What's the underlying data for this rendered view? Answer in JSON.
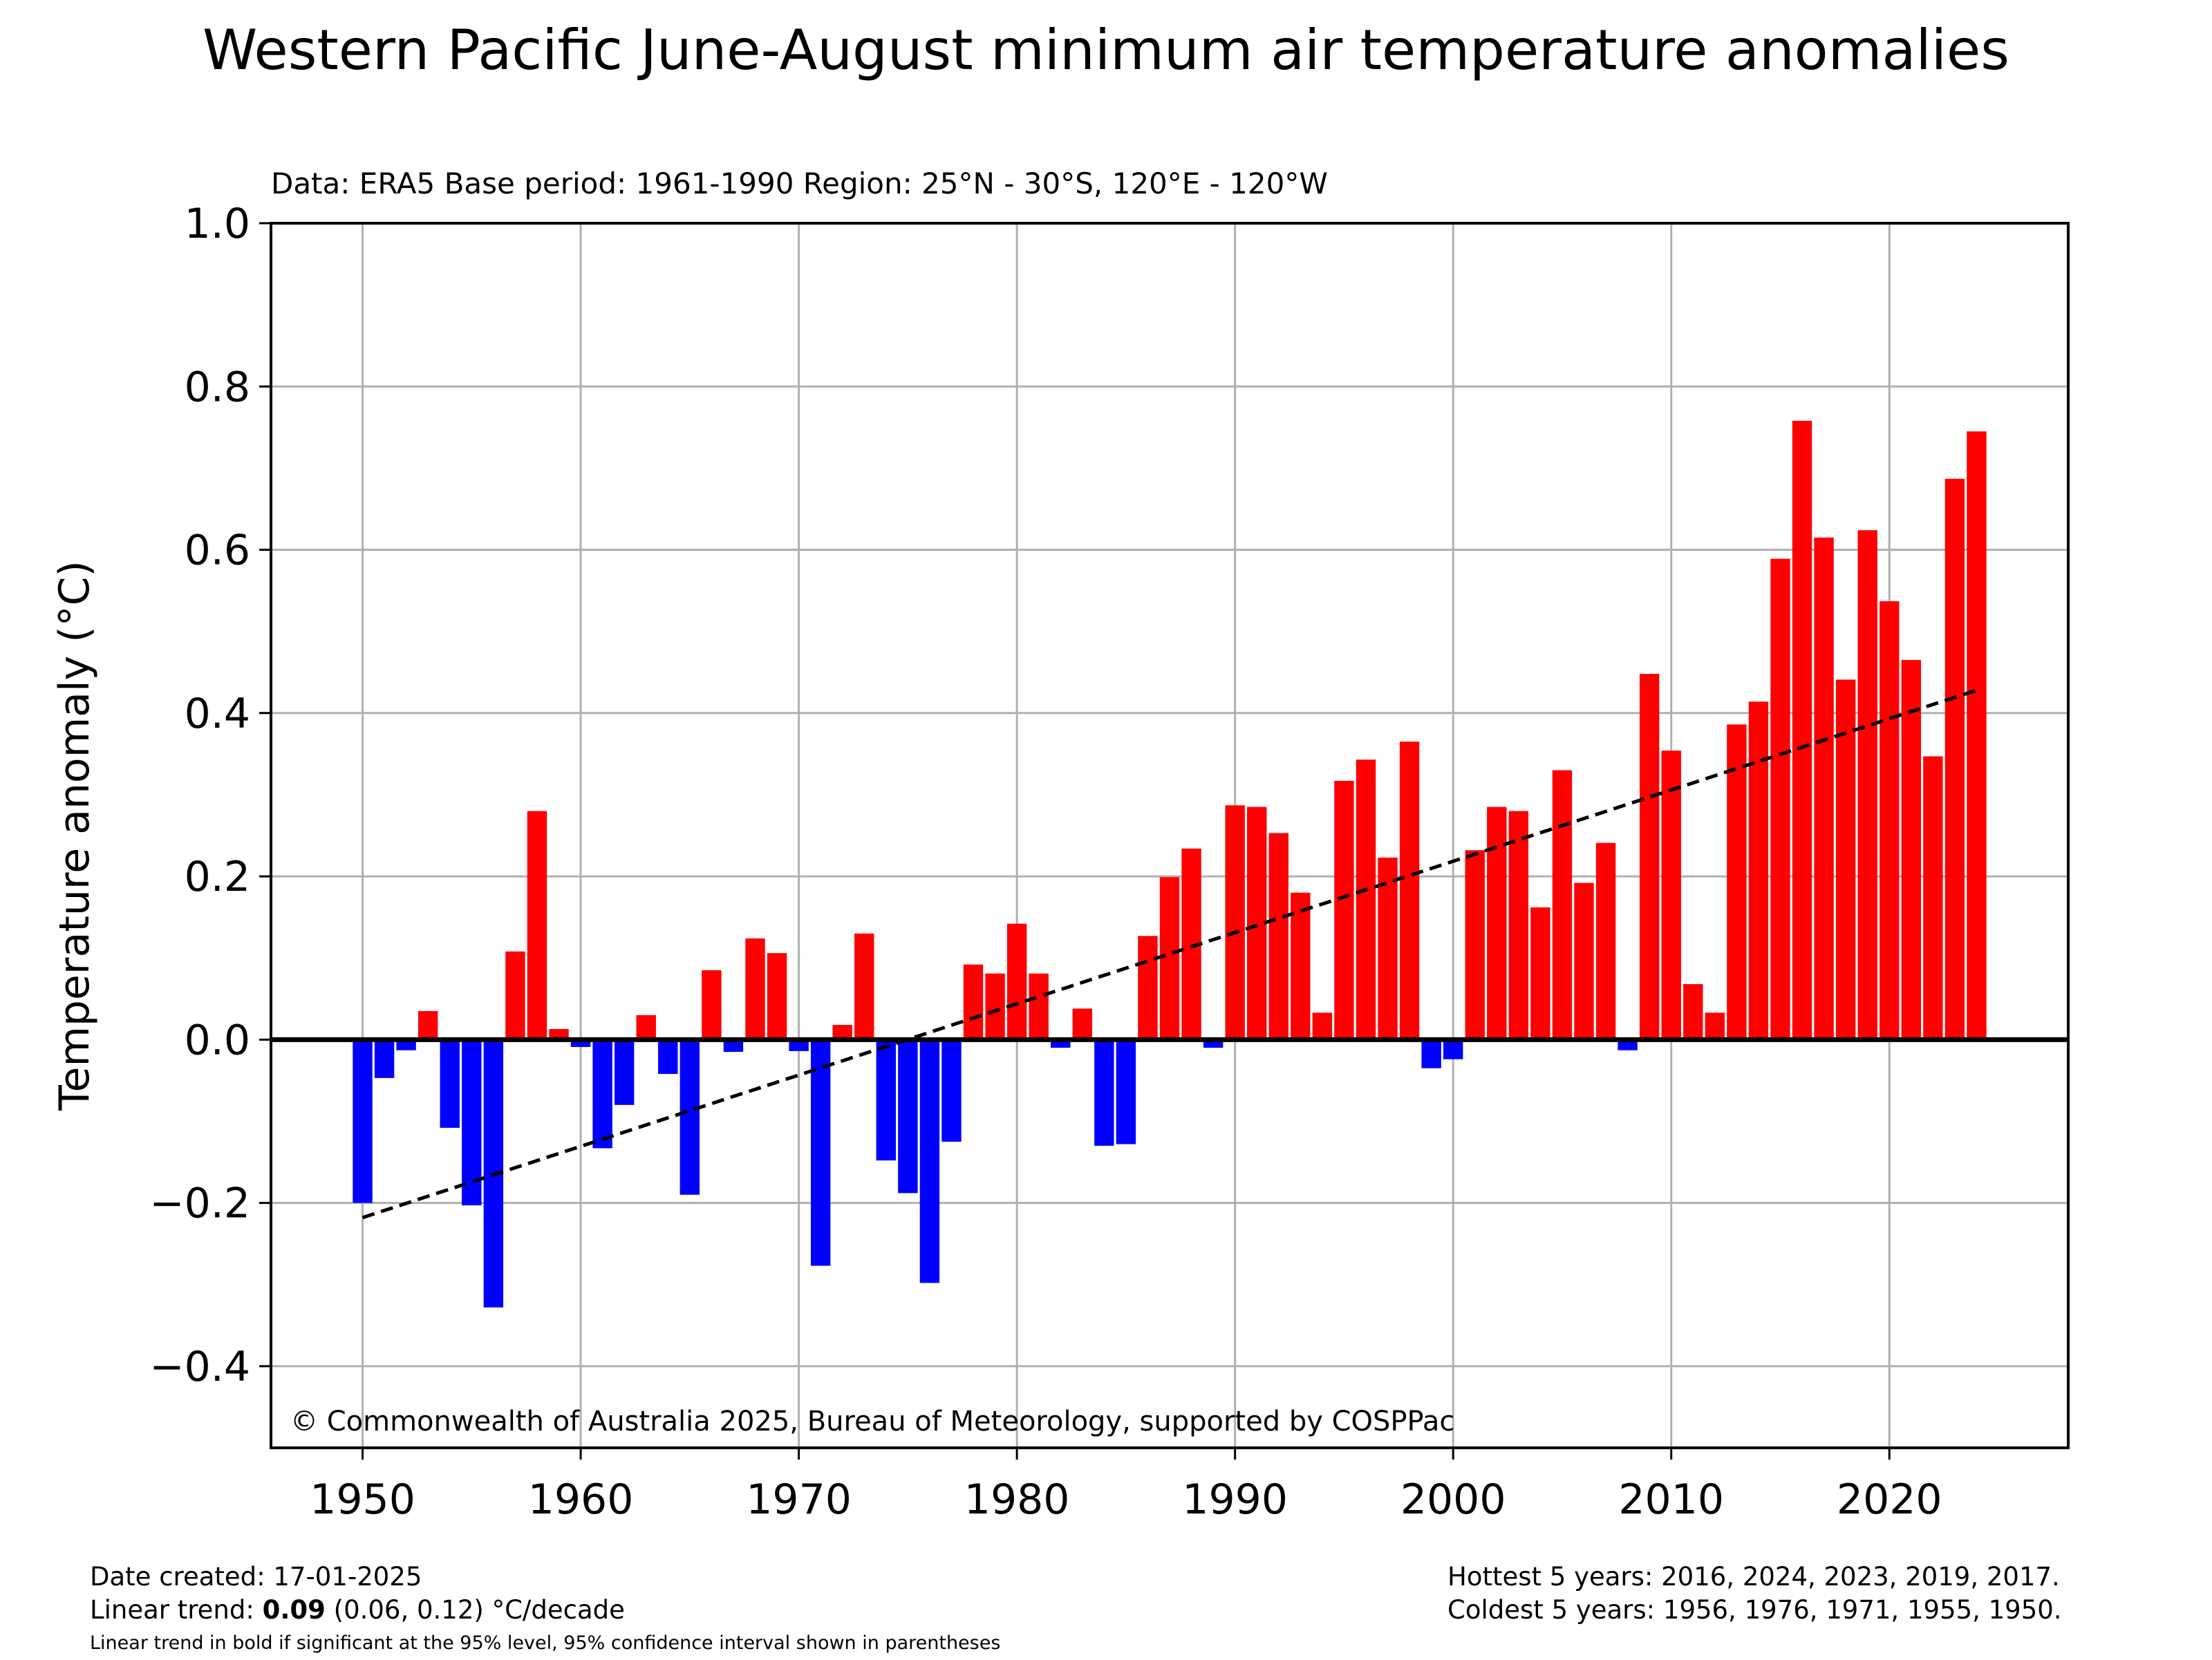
{
  "chart_data": {
    "type": "bar",
    "title": "Western Pacific June-August minimum air temperature anomalies",
    "subtitle": "Data: ERA5  Base period: 1961-1990  Region: 25°N - 30°S, 120°E - 120°W",
    "ylabel": "Temperature anomaly (°C)",
    "xlabel": "",
    "xlim": [
      1945.8,
      2028.2
    ],
    "ylim": [
      -0.5,
      1.0
    ],
    "x_ticks": [
      1950,
      1960,
      1970,
      1980,
      1990,
      2000,
      2010,
      2020
    ],
    "y_ticks": [
      -0.4,
      -0.2,
      0.0,
      0.2,
      0.4,
      0.6,
      0.8,
      1.0
    ],
    "y_tick_labels": [
      "−0.4",
      "−0.2",
      "0.0",
      "0.2",
      "0.4",
      "0.6",
      "0.8",
      "1.0"
    ],
    "grid": true,
    "positive_color": "#ff0000",
    "negative_color": "#0000ff",
    "years": [
      1950,
      1951,
      1952,
      1953,
      1954,
      1955,
      1956,
      1957,
      1958,
      1959,
      1960,
      1961,
      1962,
      1963,
      1964,
      1965,
      1966,
      1967,
      1968,
      1969,
      1970,
      1971,
      1972,
      1973,
      1974,
      1975,
      1976,
      1977,
      1978,
      1979,
      1980,
      1981,
      1982,
      1983,
      1984,
      1985,
      1986,
      1987,
      1988,
      1989,
      1990,
      1991,
      1992,
      1993,
      1994,
      1995,
      1996,
      1997,
      1998,
      1999,
      2000,
      2001,
      2002,
      2003,
      2004,
      2005,
      2006,
      2007,
      2008,
      2009,
      2010,
      2011,
      2012,
      2013,
      2014,
      2015,
      2016,
      2017,
      2018,
      2019,
      2020,
      2021,
      2022,
      2023,
      2024
    ],
    "values": [
      -0.2,
      -0.047,
      -0.013,
      0.035,
      -0.108,
      -0.203,
      -0.328,
      0.108,
      0.28,
      0.013,
      -0.009,
      -0.133,
      -0.08,
      0.03,
      -0.042,
      -0.19,
      0.085,
      -0.015,
      0.124,
      0.106,
      -0.014,
      -0.277,
      0.018,
      0.13,
      -0.148,
      -0.188,
      -0.298,
      -0.125,
      0.092,
      0.081,
      0.142,
      0.081,
      -0.01,
      0.038,
      -0.13,
      -0.128,
      0.127,
      0.199,
      0.234,
      -0.01,
      0.287,
      0.285,
      0.253,
      0.18,
      0.033,
      0.317,
      0.343,
      0.223,
      0.365,
      -0.035,
      -0.024,
      0.232,
      0.285,
      0.28,
      0.162,
      0.33,
      0.192,
      0.241,
      -0.013,
      0.448,
      0.354,
      0.068,
      0.033,
      0.386,
      0.414,
      0.589,
      0.758,
      0.615,
      0.441,
      0.624,
      0.537,
      0.465,
      0.347,
      0.687,
      0.745
    ],
    "trend": {
      "style": "dashed",
      "start": [
        1950,
        -0.218
      ],
      "end": [
        2024,
        0.428
      ]
    },
    "copyright": "© Commonwealth of Australia 2025, Bureau of Meteorology, supported by COSPPac"
  },
  "footer": {
    "date_created": "Date created: 17-01-2025",
    "trend_prefix": "Linear trend: ",
    "trend_value": "0.09",
    "trend_suffix": " (0.06, 0.12) °C/decade",
    "trend_note": "Linear trend in bold if significant at the 95% level, 95% confidence interval shown in parentheses",
    "hottest": "Hottest 5 years: 2016, 2024, 2023, 2019, 2017.",
    "coldest": "Coldest 5 years: 1956, 1976, 1971, 1955, 1950."
  }
}
